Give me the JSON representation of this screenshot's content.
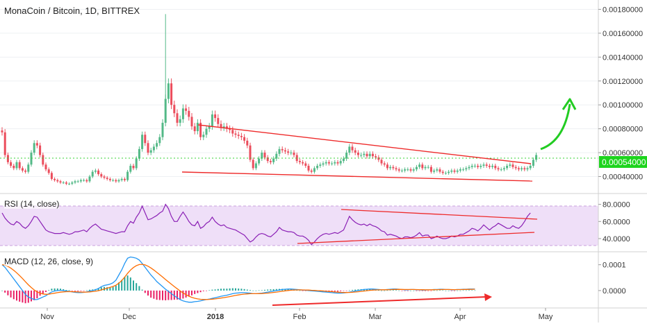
{
  "header": {
    "title": "MonaCoin / Bitcoin, 1D, BITTREX"
  },
  "price_badge": "0.00054000",
  "chart_data": [
    {
      "type": "candlestick",
      "title": "MonaCoin / Bitcoin, 1D, BITTREX",
      "y_ticks": [
        "0.00040000",
        "0.00060000",
        "0.00080000",
        "0.00100000",
        "0.00120000",
        "0.00140000",
        "0.00160000",
        "0.00180000"
      ],
      "ylim": [
        0.00031,
        0.00182
      ],
      "last_price": 0.00054,
      "colors": {
        "up": "#53b987",
        "down": "#eb4d5c",
        "trendline": "#ee2a2a",
        "arrow": "#22cc22",
        "badge": "#1dd41d"
      },
      "close_series": [
        0.00077,
        0.00058,
        0.00052,
        0.00049,
        0.00047,
        0.00052,
        0.00047,
        0.00045,
        0.00044,
        0.0005,
        0.0006,
        0.00068,
        0.00066,
        0.00058,
        0.0005,
        0.00046,
        0.00043,
        0.00038,
        0.00037,
        0.00036,
        0.00035,
        0.00035,
        0.00034,
        0.00034,
        0.00035,
        0.00036,
        0.00036,
        0.00037,
        0.00037,
        0.00036,
        0.0004,
        0.00044,
        0.00045,
        0.00042,
        0.0004,
        0.00039,
        0.00038,
        0.00037,
        0.00037,
        0.00036,
        0.00037,
        0.00038,
        0.00037,
        0.00044,
        0.00049,
        0.00047,
        0.00055,
        0.00063,
        0.00075,
        0.00068,
        0.0006,
        0.00062,
        0.00065,
        0.00068,
        0.00073,
        0.00085,
        0.00105,
        0.00118,
        0.001,
        0.00093,
        0.00085,
        0.00088,
        0.00097,
        0.00095,
        0.0009,
        0.00082,
        0.00078,
        0.00085,
        0.00073,
        0.00075,
        0.0008,
        0.00082,
        0.00092,
        0.00089,
        0.00084,
        0.00081,
        0.00082,
        0.0008,
        0.00079,
        0.00076,
        0.00075,
        0.00074,
        0.00073,
        0.0007,
        0.00066,
        0.00054,
        0.00047,
        0.00051,
        0.00055,
        0.0006,
        0.00056,
        0.00053,
        0.00052,
        0.00055,
        0.00059,
        0.00063,
        0.00062,
        0.00061,
        0.0006,
        0.0006,
        0.00058,
        0.00053,
        0.00052,
        0.00051,
        0.00049,
        0.00045,
        0.00044,
        0.00047,
        0.00049,
        0.0005,
        0.00051,
        0.00052,
        0.00051,
        0.00051,
        0.00052,
        0.00051,
        0.00053,
        0.00055,
        0.0006,
        0.00065,
        0.00062,
        0.0006,
        0.00058,
        0.00058,
        0.00059,
        0.00057,
        0.00059,
        0.00057,
        0.00056,
        0.00054,
        0.00051,
        0.0005,
        0.00047,
        0.00048,
        0.00047,
        0.00046,
        0.00045,
        0.00045,
        0.00046,
        0.00046,
        0.00045,
        0.00046,
        0.00048,
        0.0005,
        0.00047,
        0.00048,
        0.00048,
        0.00044,
        0.00045,
        0.00046,
        0.00044,
        0.00043,
        0.00043,
        0.00044,
        0.00045,
        0.00044,
        0.00045,
        0.00046,
        0.00046,
        0.00047,
        0.00048,
        0.00049,
        0.00049,
        0.00048,
        0.00049,
        0.0005,
        0.00049,
        0.00048,
        0.00049,
        0.00047,
        0.00046,
        0.00046,
        0.00047,
        0.00049,
        0.0005,
        0.00048,
        0.00047,
        0.00046,
        0.00047,
        0.00046,
        0.00047,
        0.00049,
        0.00054,
        0.00058
      ]
    },
    {
      "type": "line",
      "title": "RSI (14, close)",
      "y_ticks": [
        "40.0000",
        "60.0000",
        "80.0000"
      ],
      "ylim": [
        27,
        87
      ],
      "band": [
        30,
        70
      ],
      "colors": {
        "line": "#8a1fb5",
        "band": "rgba(198,140,230,0.28)",
        "trendline": "#ee2a2a"
      },
      "values": [
        70,
        64,
        60,
        57,
        56,
        60,
        58,
        54,
        52,
        55,
        60,
        66,
        65,
        60,
        55,
        50,
        48,
        47,
        46,
        46,
        46,
        47,
        46,
        45,
        46,
        48,
        48,
        49,
        50,
        48,
        52,
        55,
        57,
        54,
        51,
        50,
        49,
        48,
        47,
        46,
        47,
        48,
        48,
        55,
        60,
        58,
        65,
        70,
        78,
        70,
        62,
        63,
        65,
        67,
        70,
        72,
        80,
        75,
        66,
        60,
        60,
        66,
        71,
        66,
        60,
        56,
        55,
        60,
        52,
        54,
        58,
        60,
        65,
        60,
        57,
        55,
        56,
        53,
        52,
        51,
        50,
        48,
        46,
        44,
        40,
        36,
        38,
        42,
        45,
        46,
        45,
        43,
        42,
        45,
        48,
        53,
        50,
        49,
        48,
        48,
        47,
        44,
        43,
        43,
        41,
        38,
        33,
        36,
        40,
        43,
        45,
        46,
        45,
        46,
        47,
        46,
        48,
        50,
        58,
        66,
        62,
        59,
        57,
        56,
        57,
        55,
        57,
        55,
        54,
        52,
        49,
        48,
        44,
        45,
        44,
        43,
        41,
        40,
        42,
        42,
        41,
        42,
        44,
        47,
        43,
        44,
        44,
        40,
        41,
        43,
        41,
        40,
        40,
        41,
        43,
        42,
        43,
        45,
        45,
        47,
        49,
        52,
        51,
        49,
        52,
        56,
        53,
        50,
        53,
        55,
        58,
        56,
        54,
        52,
        52,
        55,
        53,
        52,
        55,
        60,
        66,
        70
      ]
    },
    {
      "type": "histogram+line",
      "title": "MACD (12, 26, close, 9)",
      "y_ticks": [
        "0.0000",
        "0.0001"
      ],
      "ylim": [
        -6.2e-05,
        0.000142
      ],
      "colors": {
        "macd": "#2196f3",
        "signal": "#ff6d00",
        "hist_up": "#26a69a",
        "hist_down": "#e91e63",
        "arrow": "#ee2a2a"
      },
      "macd": [
        0.0001,
        9e-05,
        7.5e-05,
        6e-05,
        4.5e-05,
        3e-05,
        1.5e-05,
        0,
        -1.5e-05,
        -2.5e-05,
        -3e-05,
        -3.5e-05,
        -3.5e-05,
        -3e-05,
        -2.5e-05,
        -2e-05,
        -1.2e-05,
        -5e-06,
        -2e-06,
        0,
        1e-06,
        0,
        -2e-06,
        -3e-06,
        -5e-06,
        -7e-06,
        -8e-06,
        -8e-06,
        -7e-06,
        -5e-06,
        -2e-06,
        0,
        3e-06,
        8e-06,
        1.5e-05,
        2e-05,
        2.2e-05,
        2.5e-05,
        3e-05,
        4e-05,
        6e-05,
        8e-05,
        0.000105,
        0.000125,
        0.00013,
        0.000128,
        0.000125,
        0.000118,
        0.000105,
        9e-05,
        7.5e-05,
        6e-05,
        4.8e-05,
        3.5e-05,
        2.5e-05,
        1.5e-05,
        5e-06,
        -3e-06,
        -1.2e-05,
        -2e-05,
        -2.8e-05,
        -3.5e-05,
        -4e-05,
        -4.3e-05,
        -4.5e-05,
        -4.5e-05,
        -4.3e-05,
        -4.2e-05,
        -4e-05,
        -3.7e-05,
        -3.5e-05,
        -3.3e-05,
        -3e-05,
        -2.8e-05,
        -2.5e-05,
        -2.2e-05,
        -2e-05,
        -1.8e-05,
        -1.5e-05,
        -1.2e-05,
        -1e-05,
        -9e-06,
        -8e-06,
        -8e-06,
        -9e-06,
        -1e-05,
        -1.2e-05,
        -1.2e-05,
        -1.1e-05,
        -1e-05,
        -8e-06,
        -6e-06,
        -4e-06,
        -2e-06,
        0,
        2e-06,
        4e-06,
        5e-06,
        6e-06,
        6e-06,
        5e-06,
        4e-06,
        3e-06,
        2e-06,
        1e-06,
        0,
        -1e-06,
        -2e-06,
        -3e-06,
        -4e-06,
        -5e-06,
        -6e-06,
        -7e-06,
        -8e-06,
        -9e-06,
        -1e-05,
        -1e-05,
        -9e-06,
        -8e-06,
        -6e-06,
        -4e-06,
        -2e-06,
        0,
        2e-06,
        4e-06,
        5e-06,
        6e-06,
        6e-06,
        5e-06,
        4e-06,
        3e-06,
        3e-06,
        4e-06,
        5e-06,
        6e-06,
        6e-06,
        5e-06,
        4e-06,
        3e-06,
        3e-06,
        4e-06,
        4e-06,
        3e-06,
        3e-06,
        2e-06,
        2e-06,
        3e-06,
        3e-06,
        4e-06,
        4e-06,
        5e-06,
        5e-06,
        4e-06,
        4e-06,
        3e-06,
        3e-06,
        4e-06,
        4e-06,
        5e-06,
        5e-06,
        6e-06,
        6e-06,
        6e-06
      ]
    }
  ],
  "x_axis": {
    "labels": [
      "Nov",
      "Dec",
      "2018",
      "Feb",
      "Mar",
      "Apr",
      "May"
    ]
  }
}
